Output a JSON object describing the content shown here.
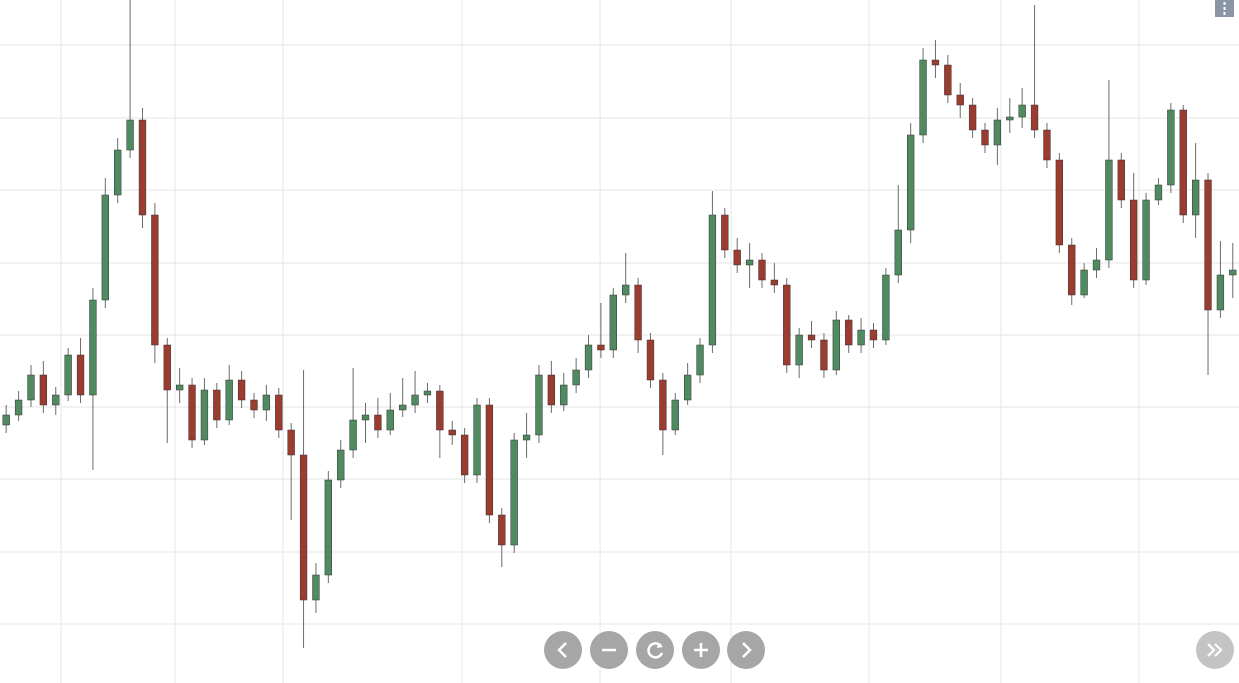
{
  "chart_data": {
    "type": "candlestick",
    "up_color": "#4f8a60",
    "down_color": "#9c3b30",
    "wick_color": "#6b6b6b",
    "grid": true,
    "xlim": [
      -0.5,
      99.5
    ],
    "xticks": [
      4.42,
      13.62,
      22.34,
      36.79,
      47.93,
      58.5,
      69.64,
      80.29,
      91.42
    ],
    "ylim": [
      0,
      683
    ],
    "yticks": [
      638,
      565,
      493,
      420,
      348,
      276,
      204,
      131,
      59
    ],
    "open": [
      258,
      268,
      283,
      308,
      278,
      288,
      328,
      288,
      383,
      488,
      533,
      563,
      468,
      338,
      293,
      298,
      243,
      293,
      263,
      303,
      283,
      273,
      288,
      253,
      228,
      83,
      108,
      203,
      233,
      263,
      268,
      253,
      273,
      278,
      288,
      292,
      253,
      248,
      208,
      278,
      168,
      138,
      243,
      248,
      308,
      278,
      298,
      313,
      338,
      333,
      388,
      398,
      343,
      303,
      253,
      283,
      308,
      338,
      468,
      433,
      418,
      423,
      403,
      398,
      318,
      348,
      343,
      313,
      363,
      338,
      353,
      343,
      408,
      453,
      548,
      623,
      618,
      588,
      578,
      553,
      538,
      563,
      566,
      578,
      553,
      523,
      438,
      388,
      413,
      423,
      523,
      483,
      403,
      483,
      498,
      573,
      468,
      503,
      373,
      408
    ],
    "close": [
      268,
      283,
      308,
      278,
      288,
      328,
      288,
      383,
      488,
      533,
      563,
      468,
      338,
      293,
      298,
      243,
      293,
      263,
      303,
      283,
      273,
      288,
      253,
      228,
      83,
      108,
      203,
      233,
      263,
      268,
      253,
      273,
      278,
      288,
      292,
      253,
      248,
      208,
      278,
      168,
      138,
      243,
      248,
      308,
      278,
      298,
      313,
      338,
      333,
      388,
      398,
      343,
      303,
      253,
      283,
      308,
      338,
      468,
      433,
      418,
      423,
      403,
      398,
      318,
      348,
      343,
      313,
      363,
      338,
      353,
      343,
      408,
      453,
      548,
      623,
      618,
      588,
      578,
      553,
      538,
      563,
      566,
      578,
      553,
      523,
      438,
      388,
      413,
      423,
      523,
      483,
      403,
      483,
      498,
      573,
      468,
      503,
      373,
      408,
      413
    ],
    "high": [
      278,
      292,
      318,
      322,
      296,
      335,
      345,
      395,
      505,
      545,
      683,
      575,
      480,
      345,
      315,
      305,
      305,
      300,
      318,
      312,
      290,
      298,
      295,
      260,
      313,
      120,
      212,
      243,
      315,
      280,
      285,
      290,
      305,
      312,
      300,
      298,
      262,
      255,
      285,
      285,
      175,
      250,
      270,
      318,
      322,
      310,
      325,
      348,
      380,
      395,
      430,
      405,
      350,
      310,
      290,
      320,
      345,
      492,
      475,
      445,
      440,
      430,
      420,
      405,
      355,
      362,
      350,
      372,
      368,
      365,
      360,
      415,
      498,
      560,
      635,
      643,
      628,
      600,
      585,
      560,
      575,
      585,
      595,
      678,
      560,
      530,
      445,
      420,
      435,
      603,
      530,
      510,
      490,
      505,
      580,
      578,
      540,
      510,
      442,
      440
    ],
    "low": [
      250,
      262,
      276,
      270,
      268,
      282,
      280,
      213,
      375,
      480,
      525,
      455,
      320,
      240,
      280,
      235,
      238,
      255,
      258,
      275,
      265,
      262,
      245,
      163,
      35,
      70,
      100,
      195,
      225,
      240,
      245,
      248,
      266,
      270,
      280,
      225,
      238,
      200,
      200,
      160,
      116,
      130,
      225,
      240,
      270,
      272,
      290,
      305,
      325,
      325,
      380,
      330,
      295,
      228,
      248,
      278,
      300,
      330,
      425,
      410,
      395,
      395,
      390,
      310,
      305,
      335,
      305,
      308,
      330,
      330,
      335,
      338,
      400,
      440,
      540,
      605,
      580,
      565,
      545,
      530,
      518,
      550,
      555,
      545,
      515,
      430,
      378,
      385,
      405,
      415,
      475,
      395,
      398,
      478,
      490,
      460,
      445,
      308,
      365,
      385
    ]
  }
}
